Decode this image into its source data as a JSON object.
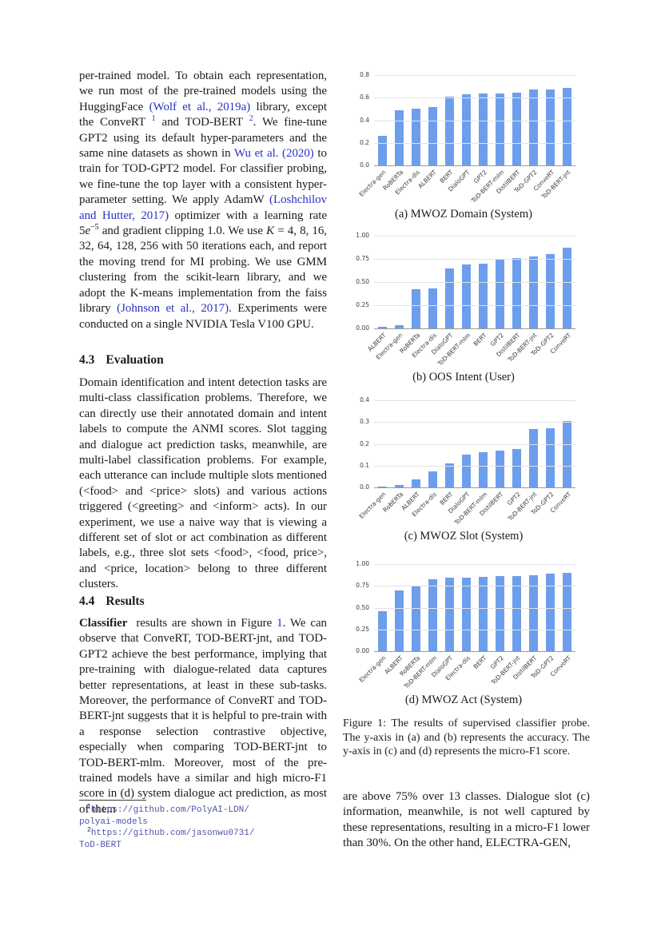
{
  "colors": {
    "bar_blue": "#6d9eeb",
    "link_blue": "#2733c4",
    "url_purple": "#4e55a8",
    "gridline": "#e3e3e3",
    "axis_gray": "#9a9a9a"
  },
  "left_column": {
    "para1": [
      {
        "t": "per-trained model. To obtain each representation, we run most of the pre-trained models using the HuggingFace ",
        "s": "p"
      },
      {
        "t": "(Wolf et al., 2019a)",
        "s": "a"
      },
      {
        "t": " library, except the ConveRT ",
        "s": "p"
      },
      {
        "t": "1",
        "s": "supa"
      },
      {
        "t": " and TOD-BERT ",
        "s": "p"
      },
      {
        "t": "2",
        "s": "supa"
      },
      {
        "t": ". We fine-tune GPT2 using its default hyper-parameters and the same nine datasets as shown in ",
        "s": "p"
      },
      {
        "t": "Wu et al. (2020)",
        "s": "a"
      },
      {
        "t": " to train for TOD-GPT2 model. For classifier probing, we fine-tune the top layer with a consistent hyper-parameter setting. We apply AdamW ",
        "s": "p"
      },
      {
        "t": "(Loshchilov and Hutter, 2017)",
        "s": "a"
      },
      {
        "t": " optimizer with a learning rate 5",
        "s": "p"
      },
      {
        "t": "e",
        "s": "i"
      },
      {
        "t": "−5",
        "s": "sup"
      },
      {
        "t": " and gradient clipping 1.0.  We use ",
        "s": "p"
      },
      {
        "t": "K",
        "s": "i"
      },
      {
        "t": " = 4, 8, 16, 32, 64, 128, 256 with 50 iterations each, and report the moving trend for MI probing.  We use GMM clustering from the scikit-learn library, and we adopt the K-means implementation from the faiss library ",
        "s": "p"
      },
      {
        "t": "(Johnson et al., 2017)",
        "s": "a"
      },
      {
        "t": ". Experiments were conducted on a single NVIDIA Tesla V100 GPU.",
        "s": "p"
      }
    ],
    "heading_43": {
      "num": "4.3",
      "title": "Evaluation"
    },
    "para2": [
      {
        "t": "Domain identification and intent detection tasks are multi-class classification problems.  Therefore, we can directly use their annotated domain and intent labels to compute the ANMI scores.  Slot tagging and dialogue act prediction tasks, meanwhile, are multi-label classification problems.  For example, each utterance can include multiple slots mentioned (<food> and <price> slots) and various actions triggered (<greeting> and <inform> acts). In our experiment, we use a naive way that is viewing a different set of slot or act combination as different labels, e.g., three slot sets <food>, <food, price>, and <price, location> belong to three different clusters.",
        "s": "p"
      }
    ],
    "heading_44": {
      "num": "4.4",
      "title": "Results"
    },
    "para3": [
      {
        "t": "Classifier",
        "s": "b"
      },
      {
        "t": "results are shown in Figure ",
        "s": "p"
      },
      {
        "t": "1",
        "s": "a"
      },
      {
        "t": ". We can observe that ConveRT, TOD-BERT-jnt, and TOD-GPT2 achieve the best performance, implying that pre-training with dialogue-related data captures better representations, at least in these sub-tasks. Moreover, the performance of ConveRT and TOD-BERT-jnt suggests that it is helpful to pre-train with a response selection contrastive objective, especially when comparing TOD-BERT-jnt to TOD-BERT-mlm.  Moreover, most of the pre-trained models have a similar and high micro-F1 score in (d) system dialogue act prediction, as most of them",
        "s": "p"
      }
    ],
    "footnotes": [
      {
        "marker": "1",
        "line1": "https://github.com/PolyAI-LDN/",
        "line2": "polyai-models"
      },
      {
        "marker": "2",
        "line1": "https://github.com/jasonwu0731/",
        "line2": "ToD-BERT"
      }
    ]
  },
  "right_column": {
    "figure_caption": "Figure 1:  The results of supervised classifier probe. The y-axis in (a) and (b) represents the accuracy.  The y-axis in (c) and (d) represents the micro-F1 score.",
    "bottom_para": "are above 75% over 13 classes.  Dialogue slot (c) information, meanwhile, is not well captured by these representations, resulting in a micro-F1 lower than 30%.  On the other hand, ELECTRA-GEN,"
  },
  "chart_data": [
    {
      "type": "bar",
      "caption": "(a) MWOZ Domain (System)",
      "ylabel": "accuracy",
      "ymax": 0.8,
      "yticks": [
        "0.0",
        "0.2",
        "0.4",
        "0.6",
        "0.8"
      ],
      "grid": true,
      "categories": [
        "Electra-gen",
        "RoBERTa",
        "Electra-dis",
        "ALBERT",
        "BERT",
        "DialoGPT",
        "GPT2",
        "ToD-BERT-mlm",
        "DistilBERT",
        "ToD-GPT2",
        "ConveRT",
        "ToD-BERT-jnt"
      ],
      "values": [
        0.26,
        0.49,
        0.5,
        0.52,
        0.61,
        0.63,
        0.635,
        0.64,
        0.645,
        0.67,
        0.675,
        0.69
      ]
    },
    {
      "type": "bar",
      "caption": "(b) OOS Intent (User)",
      "ylabel": "accuracy",
      "ymax": 1.0,
      "yticks": [
        "0.00",
        "0.25",
        "0.50",
        "0.75",
        "1.00"
      ],
      "grid": true,
      "categories": [
        "ALBERT",
        "Electra-gen",
        "RoBERTa",
        "Electra-dis",
        "DialoGPT",
        "ToD-BERT-mlm",
        "BERT",
        "GPT2",
        "DistilBERT",
        "ToD-BERT-jnt",
        "ToD-GPT2",
        "ConveRT"
      ],
      "values": [
        0.015,
        0.035,
        0.42,
        0.43,
        0.65,
        0.69,
        0.7,
        0.74,
        0.755,
        0.775,
        0.8,
        0.87
      ]
    },
    {
      "type": "bar",
      "caption": "(c) MWOZ Slot (System)",
      "ylabel": "micro-F1",
      "ymax": 0.4,
      "yticks": [
        "0.0",
        "0.1",
        "0.2",
        "0.3",
        "0.4"
      ],
      "grid": true,
      "categories": [
        "Electra-gen",
        "RoBERTa",
        "ALBERT",
        "Electra-dis",
        "BERT",
        "DialoGPT",
        "ToD-BERT-mlm",
        "DistilBERT",
        "GPT2",
        "ToD-BERT-jnt",
        "ToD-GPT2",
        "ConveRT"
      ],
      "values": [
        0.002,
        0.012,
        0.037,
        0.075,
        0.11,
        0.15,
        0.16,
        0.17,
        0.175,
        0.268,
        0.272,
        0.305
      ]
    },
    {
      "type": "bar",
      "caption": "(d) MWOZ Act (System)",
      "ylabel": "micro-F1",
      "ymax": 1.0,
      "yticks": [
        "0.00",
        "0.25",
        "0.50",
        "0.75",
        "1.00"
      ],
      "grid": true,
      "categories": [
        "Electra-gen",
        "ALBERT",
        "RoBERTa",
        "ToD-BERT-mlm",
        "DialoGPT",
        "Electra-dis",
        "BERT",
        "GPT2",
        "ToD-BERT-jnt",
        "DistilBERT",
        "ToD-GPT2",
        "ConveRT"
      ],
      "values": [
        0.46,
        0.7,
        0.74,
        0.83,
        0.84,
        0.845,
        0.855,
        0.86,
        0.865,
        0.87,
        0.89,
        0.9
      ]
    }
  ]
}
